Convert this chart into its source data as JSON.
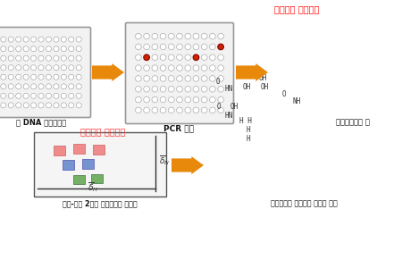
{
  "bg_color": "#ffffff",
  "arrow_color": "#E8890C",
  "top_label_color": "#FF0000",
  "spectral_label_color": "#FF3333",
  "label1": "을 DNA 라이브러리",
  "label2": "PCR 검색",
  "label3": "계통분류학적 분",
  "label4": "수소-질소 2차원 핵자기공명 분광법",
  "label5": "논리적이고 효율적인 천연물 발굴",
  "top_right_label": "유전자적 시그너의",
  "spectral_label": "분광학적 시그너처",
  "well_border_color": "#999999",
  "highlight_color": "#cc2200",
  "pink_block_color": "#f08080",
  "blue_block_color": "#6688cc",
  "green_block_color": "#66aa55"
}
